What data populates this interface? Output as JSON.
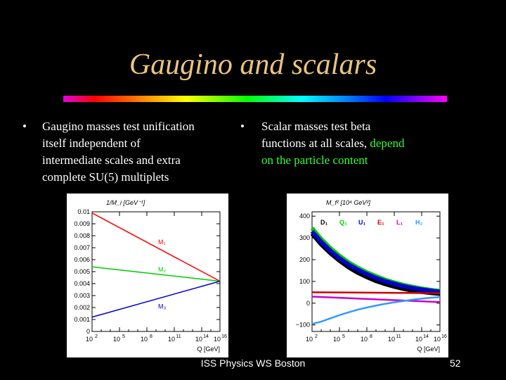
{
  "title": "Gaugino and scalars",
  "bullets": {
    "left": {
      "marker": "•",
      "lines": [
        "Gaugino masses test unification",
        "itself independent of",
        "intermediate scales and extra",
        "complete SU(5) multiplets"
      ]
    },
    "right": {
      "marker": "•",
      "line1": "Scalar masses test beta",
      "line2a": "functions at all scales, ",
      "line2b": "depend",
      "line3": "on the particle content",
      "highlight_color": "#33ff33"
    }
  },
  "footer": "ISS Physics WS Boston",
  "page_number": "52",
  "chart_data": [
    {
      "type": "line",
      "ylabel": "1/M_i [GeV⁻¹]",
      "xlabel": "Q [GeV]",
      "xscale": "log",
      "xlim": [
        100,
        10000000000000000
      ],
      "ylim": [
        0,
        0.01
      ],
      "yticks": [
        "0.01",
        "0.009",
        "0.008",
        "0.007",
        "0.006",
        "0.005",
        "0.004",
        "0.003",
        "0.002",
        "0.001",
        "0"
      ],
      "xticks": [
        {
          "base": "10",
          "exp": "2",
          "v": 2
        },
        {
          "base": "10",
          "exp": "5",
          "v": 5
        },
        {
          "base": "10",
          "exp": "8",
          "v": 8
        },
        {
          "base": "10",
          "exp": "11",
          "v": 11
        },
        {
          "base": "10",
          "exp": "14",
          "v": 14
        },
        {
          "base": "10",
          "exp": "16",
          "v": 16
        }
      ],
      "series": [
        {
          "name": "M₁",
          "color": "#ff0000",
          "x": [
            100,
            10000000000000000
          ],
          "y": [
            0.0099,
            0.0042
          ]
        },
        {
          "name": "M₂",
          "color": "#00cc00",
          "x": [
            100,
            10000000000000000
          ],
          "y": [
            0.0054,
            0.0042
          ]
        },
        {
          "name": "M₃",
          "color": "#0000cc",
          "x": [
            100,
            10000000000000000
          ],
          "y": [
            0.0012,
            0.0042
          ]
        }
      ]
    },
    {
      "type": "line",
      "ylabel": "M_f² [10⁴ GeV²]",
      "xlabel": "Q [GeV]",
      "xscale": "log",
      "xlim": [
        100,
        10000000000000000
      ],
      "ylim": [
        -130,
        420
      ],
      "yticks": [
        "400",
        "300",
        "200",
        "100",
        "0",
        "−100"
      ],
      "xticks": [
        {
          "base": "10",
          "exp": "2",
          "v": 2
        },
        {
          "base": "10",
          "exp": "5",
          "v": 5
        },
        {
          "base": "10",
          "exp": "8",
          "v": 8
        },
        {
          "base": "10",
          "exp": "11",
          "v": 11
        },
        {
          "base": "10",
          "exp": "14",
          "v": 14
        },
        {
          "base": "10",
          "exp": "16",
          "v": 16
        }
      ],
      "series": [
        {
          "name": "D₁",
          "color": "#000000",
          "x": [
            100,
            1000,
            10000,
            100000,
            1000000,
            10000000,
            100000000,
            1000000000,
            10000000000,
            100000000000,
            1000000000000,
            10000000000000,
            100000000000000,
            1000000000000000,
            10000000000000000
          ],
          "y": [
            320,
            270,
            230,
            195,
            165,
            140,
            120,
            102,
            88,
            76,
            66,
            58,
            52,
            47,
            43
          ]
        },
        {
          "name": "Q₁",
          "color": "#00cc00",
          "x": [
            100,
            1000,
            10000,
            100000,
            1000000,
            10000000,
            100000000,
            1000000000,
            10000000000,
            100000000000,
            1000000000000,
            10000000000000,
            100000000000000,
            1000000000000000,
            10000000000000000
          ],
          "y": [
            345,
            295,
            253,
            218,
            188,
            163,
            142,
            124,
            108,
            95,
            84,
            75,
            67,
            61,
            56
          ]
        },
        {
          "name": "U₁",
          "color": "#0000cc",
          "x": [
            100,
            1000,
            10000,
            100000,
            1000000,
            10000000,
            100000000,
            1000000000,
            10000000000,
            100000000000,
            1000000000000,
            10000000000000,
            100000000000000,
            1000000000000000,
            10000000000000000
          ],
          "y": [
            330,
            282,
            241,
            207,
            178,
            154,
            134,
            116,
            101,
            89,
            78,
            70,
            63,
            57,
            52
          ]
        },
        {
          "name": "E₁",
          "color": "#cc0000",
          "x": [
            100,
            10000000000000000
          ],
          "y": [
            50,
            46
          ]
        },
        {
          "name": "L₁",
          "color": "#cc00cc",
          "x": [
            100,
            10000000000000000
          ],
          "y": [
            30,
            5
          ]
        },
        {
          "name": "H₂",
          "color": "#3399ff",
          "x": [
            100,
            1000,
            10000,
            100000,
            1000000,
            10000000,
            100000000,
            1000000000,
            10000000000,
            100000000000,
            1000000000000,
            10000000000000,
            100000000000000,
            1000000000000000,
            10000000000000000
          ],
          "y": [
            -95,
            -85,
            -70,
            -55,
            -42,
            -30,
            -20,
            -11,
            -3,
            4,
            10,
            16,
            21,
            25,
            28
          ]
        }
      ]
    }
  ]
}
